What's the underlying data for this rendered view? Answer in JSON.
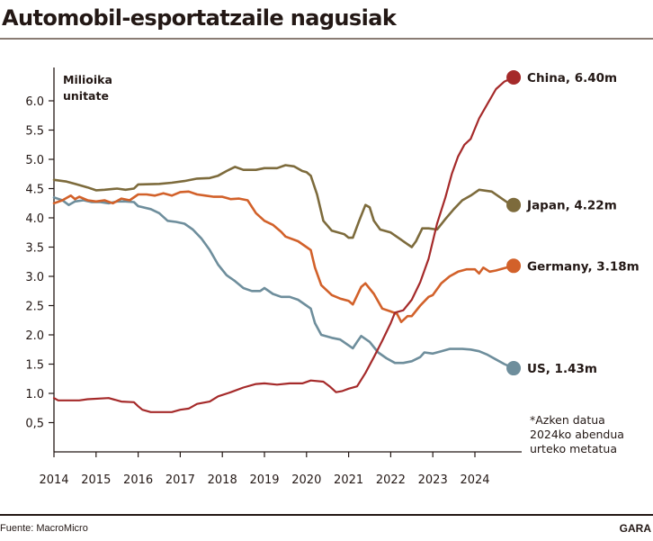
{
  "header": {
    "title": "Automobil-esportatzaile nagusiak"
  },
  "footer": {
    "source": "Fuente: MacroMicro",
    "brand": "GARA"
  },
  "chart_data": {
    "type": "line",
    "title": "Automobil-esportatzaile nagusiak",
    "ylabel": "Milioika unitate",
    "ylabel_lines": [
      "Milioika",
      "unitate"
    ],
    "xlabel": "",
    "ylim": [
      0,
      6.5
    ],
    "xlim": [
      2014,
      2024.92
    ],
    "yticks": [
      0.5,
      1.0,
      1.5,
      2.0,
      2.5,
      3.0,
      3.5,
      4.0,
      4.5,
      5.0,
      5.5,
      6.0
    ],
    "ytick_labels": [
      "0,5",
      "1.0",
      "1.5",
      "2.0",
      "2.5",
      "3.0",
      "3.5",
      "4.0",
      "4.5",
      "5.0",
      "5.5",
      "6.0"
    ],
    "xticks": [
      2014,
      2015,
      2016,
      2017,
      2018,
      2019,
      2020,
      2021,
      2022,
      2023,
      2024
    ],
    "xtick_labels": [
      "2014",
      "2015",
      "2016",
      "2017",
      "2018",
      "2019",
      "2020",
      "2021",
      "2022",
      "2023",
      "2024"
    ],
    "grid": false,
    "legend": "end-of-line labels (right)",
    "note_lines": [
      "*Azken datua",
      "2024ko abendua",
      "urteko metatua"
    ],
    "series": [
      {
        "name": "China",
        "label": "China, 6.40m",
        "color": "#a52a2a",
        "end_value": 6.4,
        "points": [
          [
            2014.0,
            0.92
          ],
          [
            2014.1,
            0.88
          ],
          [
            2014.6,
            0.88
          ],
          [
            2014.8,
            0.9
          ],
          [
            2015.3,
            0.92
          ],
          [
            2015.6,
            0.86
          ],
          [
            2015.9,
            0.85
          ],
          [
            2016.0,
            0.78
          ],
          [
            2016.1,
            0.72
          ],
          [
            2016.3,
            0.68
          ],
          [
            2016.8,
            0.68
          ],
          [
            2017.0,
            0.72
          ],
          [
            2017.2,
            0.74
          ],
          [
            2017.4,
            0.82
          ],
          [
            2017.7,
            0.86
          ],
          [
            2017.9,
            0.95
          ],
          [
            2018.2,
            1.02
          ],
          [
            2018.5,
            1.1
          ],
          [
            2018.8,
            1.16
          ],
          [
            2019.0,
            1.17
          ],
          [
            2019.3,
            1.15
          ],
          [
            2019.6,
            1.17
          ],
          [
            2019.9,
            1.17
          ],
          [
            2020.1,
            1.22
          ],
          [
            2020.4,
            1.2
          ],
          [
            2020.55,
            1.12
          ],
          [
            2020.7,
            1.02
          ],
          [
            2020.85,
            1.04
          ],
          [
            2021.0,
            1.08
          ],
          [
            2021.2,
            1.12
          ],
          [
            2021.4,
            1.35
          ],
          [
            2021.6,
            1.62
          ],
          [
            2021.8,
            1.9
          ],
          [
            2022.0,
            2.2
          ],
          [
            2022.1,
            2.38
          ],
          [
            2022.3,
            2.42
          ],
          [
            2022.5,
            2.6
          ],
          [
            2022.7,
            2.9
          ],
          [
            2022.9,
            3.3
          ],
          [
            2023.1,
            3.9
          ],
          [
            2023.3,
            4.35
          ],
          [
            2023.45,
            4.75
          ],
          [
            2023.6,
            5.05
          ],
          [
            2023.75,
            5.25
          ],
          [
            2023.9,
            5.35
          ],
          [
            2024.1,
            5.7
          ],
          [
            2024.3,
            5.95
          ],
          [
            2024.5,
            6.2
          ],
          [
            2024.7,
            6.33
          ],
          [
            2024.92,
            6.4
          ]
        ]
      },
      {
        "name": "Japan",
        "label": "Japan, 4.22m",
        "color": "#7d6b3c",
        "end_value": 4.22,
        "points": [
          [
            2014.0,
            4.65
          ],
          [
            2014.3,
            4.62
          ],
          [
            2014.5,
            4.58
          ],
          [
            2014.8,
            4.52
          ],
          [
            2015.0,
            4.47
          ],
          [
            2015.2,
            4.48
          ],
          [
            2015.5,
            4.5
          ],
          [
            2015.7,
            4.48
          ],
          [
            2015.9,
            4.5
          ],
          [
            2016.0,
            4.57
          ],
          [
            2016.5,
            4.58
          ],
          [
            2016.8,
            4.6
          ],
          [
            2017.1,
            4.63
          ],
          [
            2017.4,
            4.67
          ],
          [
            2017.7,
            4.68
          ],
          [
            2017.9,
            4.72
          ],
          [
            2018.1,
            4.8
          ],
          [
            2018.3,
            4.87
          ],
          [
            2018.5,
            4.82
          ],
          [
            2018.8,
            4.82
          ],
          [
            2019.0,
            4.85
          ],
          [
            2019.3,
            4.85
          ],
          [
            2019.5,
            4.9
          ],
          [
            2019.7,
            4.88
          ],
          [
            2019.9,
            4.8
          ],
          [
            2020.0,
            4.78
          ],
          [
            2020.1,
            4.72
          ],
          [
            2020.25,
            4.4
          ],
          [
            2020.4,
            3.95
          ],
          [
            2020.6,
            3.78
          ],
          [
            2020.9,
            3.72
          ],
          [
            2021.0,
            3.66
          ],
          [
            2021.1,
            3.66
          ],
          [
            2021.25,
            3.95
          ],
          [
            2021.4,
            4.22
          ],
          [
            2021.5,
            4.18
          ],
          [
            2021.6,
            3.95
          ],
          [
            2021.75,
            3.8
          ],
          [
            2022.0,
            3.75
          ],
          [
            2022.2,
            3.65
          ],
          [
            2022.4,
            3.55
          ],
          [
            2022.5,
            3.5
          ],
          [
            2022.6,
            3.6
          ],
          [
            2022.75,
            3.82
          ],
          [
            2022.9,
            3.82
          ],
          [
            2023.1,
            3.8
          ],
          [
            2023.3,
            3.98
          ],
          [
            2023.5,
            4.15
          ],
          [
            2023.7,
            4.3
          ],
          [
            2023.9,
            4.38
          ],
          [
            2024.1,
            4.48
          ],
          [
            2024.4,
            4.45
          ],
          [
            2024.6,
            4.35
          ],
          [
            2024.8,
            4.25
          ],
          [
            2024.92,
            4.22
          ]
        ]
      },
      {
        "name": "Germany",
        "label": "Germany, 3.18m",
        "color": "#d2612a",
        "end_value": 3.18,
        "points": [
          [
            2014.0,
            4.25
          ],
          [
            2014.2,
            4.3
          ],
          [
            2014.4,
            4.38
          ],
          [
            2014.5,
            4.32
          ],
          [
            2014.6,
            4.36
          ],
          [
            2014.8,
            4.3
          ],
          [
            2015.0,
            4.28
          ],
          [
            2015.2,
            4.3
          ],
          [
            2015.4,
            4.25
          ],
          [
            2015.6,
            4.33
          ],
          [
            2015.8,
            4.3
          ],
          [
            2016.0,
            4.4
          ],
          [
            2016.2,
            4.4
          ],
          [
            2016.4,
            4.38
          ],
          [
            2016.6,
            4.42
          ],
          [
            2016.8,
            4.38
          ],
          [
            2017.0,
            4.44
          ],
          [
            2017.2,
            4.45
          ],
          [
            2017.4,
            4.4
          ],
          [
            2017.6,
            4.38
          ],
          [
            2017.8,
            4.36
          ],
          [
            2018.0,
            4.36
          ],
          [
            2018.2,
            4.32
          ],
          [
            2018.4,
            4.33
          ],
          [
            2018.6,
            4.3
          ],
          [
            2018.8,
            4.08
          ],
          [
            2019.0,
            3.95
          ],
          [
            2019.2,
            3.88
          ],
          [
            2019.4,
            3.76
          ],
          [
            2019.5,
            3.68
          ],
          [
            2019.8,
            3.6
          ],
          [
            2020.0,
            3.5
          ],
          [
            2020.1,
            3.45
          ],
          [
            2020.2,
            3.15
          ],
          [
            2020.35,
            2.85
          ],
          [
            2020.6,
            2.68
          ],
          [
            2020.8,
            2.62
          ],
          [
            2021.0,
            2.58
          ],
          [
            2021.1,
            2.52
          ],
          [
            2021.3,
            2.82
          ],
          [
            2021.4,
            2.88
          ],
          [
            2021.6,
            2.7
          ],
          [
            2021.8,
            2.45
          ],
          [
            2022.0,
            2.4
          ],
          [
            2022.15,
            2.36
          ],
          [
            2022.25,
            2.22
          ],
          [
            2022.4,
            2.32
          ],
          [
            2022.5,
            2.32
          ],
          [
            2022.7,
            2.5
          ],
          [
            2022.9,
            2.65
          ],
          [
            2023.0,
            2.68
          ],
          [
            2023.2,
            2.88
          ],
          [
            2023.4,
            3.0
          ],
          [
            2023.6,
            3.08
          ],
          [
            2023.8,
            3.12
          ],
          [
            2024.0,
            3.12
          ],
          [
            2024.1,
            3.05
          ],
          [
            2024.2,
            3.15
          ],
          [
            2024.35,
            3.08
          ],
          [
            2024.5,
            3.1
          ],
          [
            2024.7,
            3.14
          ],
          [
            2024.92,
            3.18
          ]
        ]
      },
      {
        "name": "US",
        "label": "US, 1.43m",
        "color": "#6e8e9c",
        "end_value": 1.43,
        "points": [
          [
            2014.0,
            4.35
          ],
          [
            2014.2,
            4.3
          ],
          [
            2014.35,
            4.22
          ],
          [
            2014.5,
            4.28
          ],
          [
            2014.7,
            4.3
          ],
          [
            2014.9,
            4.27
          ],
          [
            2015.1,
            4.27
          ],
          [
            2015.3,
            4.25
          ],
          [
            2015.5,
            4.28
          ],
          [
            2015.7,
            4.28
          ],
          [
            2015.9,
            4.27
          ],
          [
            2016.0,
            4.2
          ],
          [
            2016.3,
            4.15
          ],
          [
            2016.5,
            4.08
          ],
          [
            2016.7,
            3.95
          ],
          [
            2016.9,
            3.93
          ],
          [
            2017.1,
            3.9
          ],
          [
            2017.3,
            3.8
          ],
          [
            2017.5,
            3.65
          ],
          [
            2017.7,
            3.45
          ],
          [
            2017.9,
            3.2
          ],
          [
            2018.1,
            3.02
          ],
          [
            2018.3,
            2.92
          ],
          [
            2018.5,
            2.8
          ],
          [
            2018.7,
            2.75
          ],
          [
            2018.9,
            2.75
          ],
          [
            2019.0,
            2.8
          ],
          [
            2019.2,
            2.7
          ],
          [
            2019.4,
            2.65
          ],
          [
            2019.6,
            2.65
          ],
          [
            2019.8,
            2.6
          ],
          [
            2020.0,
            2.5
          ],
          [
            2020.1,
            2.45
          ],
          [
            2020.2,
            2.2
          ],
          [
            2020.35,
            2.0
          ],
          [
            2020.6,
            1.95
          ],
          [
            2020.8,
            1.92
          ],
          [
            2021.0,
            1.82
          ],
          [
            2021.1,
            1.77
          ],
          [
            2021.2,
            1.88
          ],
          [
            2021.3,
            1.98
          ],
          [
            2021.5,
            1.88
          ],
          [
            2021.7,
            1.7
          ],
          [
            2021.9,
            1.6
          ],
          [
            2022.1,
            1.52
          ],
          [
            2022.3,
            1.52
          ],
          [
            2022.5,
            1.55
          ],
          [
            2022.7,
            1.62
          ],
          [
            2022.8,
            1.7
          ],
          [
            2023.0,
            1.68
          ],
          [
            2023.2,
            1.72
          ],
          [
            2023.4,
            1.76
          ],
          [
            2023.7,
            1.76
          ],
          [
            2023.9,
            1.75
          ],
          [
            2024.1,
            1.72
          ],
          [
            2024.3,
            1.66
          ],
          [
            2024.5,
            1.58
          ],
          [
            2024.7,
            1.5
          ],
          [
            2024.92,
            1.43
          ]
        ]
      }
    ]
  }
}
